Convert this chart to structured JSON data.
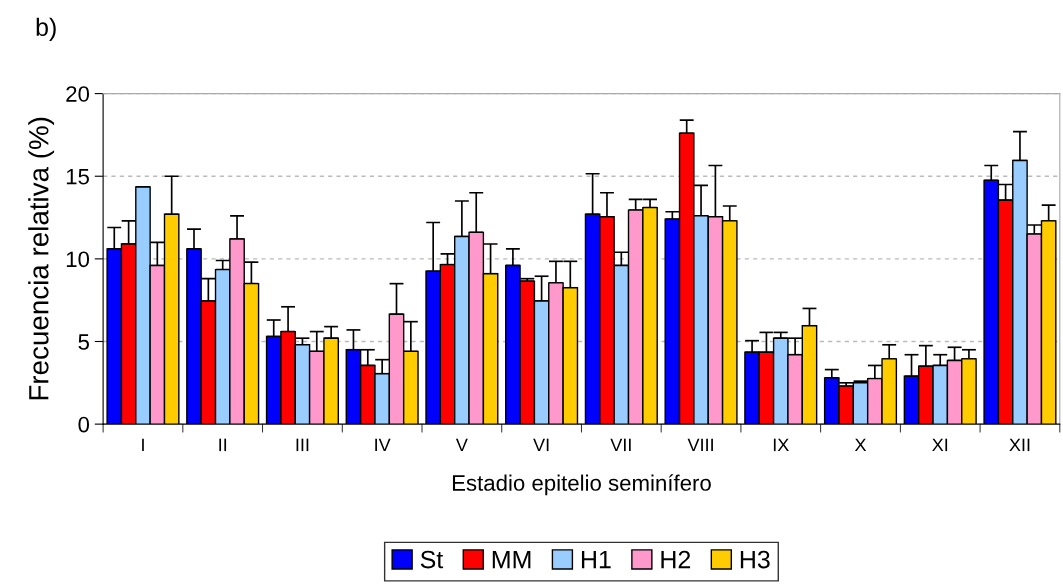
{
  "chart_data": {
    "type": "bar",
    "xlabel": "Estadio epitelio seminífero",
    "ylabel": "Frecuencia relativa (%)",
    "annotations": [
      "b)"
    ],
    "categories": [
      "I",
      "II",
      "III",
      "IV",
      "V",
      "VI",
      "VII",
      "VIII",
      "IX",
      "X",
      "XI",
      "XII"
    ],
    "ylim": [
      0,
      20
    ],
    "yticks": [
      0,
      5,
      10,
      15,
      20
    ],
    "grid": "y",
    "legend": "bottom",
    "series": [
      {
        "name": "St",
        "color": "#0000ff",
        "values": [
          10.6,
          10.6,
          5.3,
          4.5,
          9.25,
          9.6,
          12.7,
          12.4,
          4.35,
          2.8,
          2.9,
          14.75
        ],
        "errors": [
          [
            10.6,
            11.9
          ],
          [
            10.6,
            11.8
          ],
          [
            5.3,
            6.3
          ],
          [
            4.5,
            5.7
          ],
          [
            9.25,
            12.2
          ],
          [
            9.6,
            10.6
          ],
          [
            12.7,
            15.15
          ],
          [
            12.4,
            12.85
          ],
          [
            4.35,
            5.05
          ],
          [
            2.8,
            3.3
          ],
          [
            2.9,
            4.2
          ],
          [
            14.75,
            15.65
          ]
        ]
      },
      {
        "name": "MM",
        "color": "#ff0000",
        "values": [
          10.9,
          7.45,
          5.6,
          3.55,
          9.65,
          8.65,
          12.55,
          17.6,
          4.35,
          2.3,
          3.5,
          13.55
        ],
        "errors": [
          [
            10.9,
            12.3
          ],
          [
            7.45,
            8.8
          ],
          [
            5.6,
            7.1
          ],
          [
            3.55,
            4.5
          ],
          [
            9.65,
            10.3
          ],
          [
            8.65,
            8.8
          ],
          [
            12.55,
            14.0
          ],
          [
            17.6,
            18.4
          ],
          [
            4.35,
            5.55
          ],
          [
            2.3,
            2.5
          ],
          [
            3.5,
            4.75
          ],
          [
            13.55,
            14.5
          ]
        ]
      },
      {
        "name": "H1",
        "color": "#99ccff",
        "values": [
          14.35,
          9.35,
          4.8,
          3.05,
          11.35,
          7.45,
          9.6,
          12.6,
          5.2,
          2.5,
          3.55,
          15.95
        ],
        "errors": [
          [
            14.35,
            14.35
          ],
          [
            9.35,
            9.9
          ],
          [
            4.8,
            5.2
          ],
          [
            3.05,
            3.9
          ],
          [
            11.35,
            13.5
          ],
          [
            7.45,
            8.95
          ],
          [
            9.6,
            10.4
          ],
          [
            12.6,
            14.45
          ],
          [
            5.2,
            5.55
          ],
          [
            2.5,
            2.6
          ],
          [
            3.55,
            4.2
          ],
          [
            15.95,
            17.7
          ]
        ]
      },
      {
        "name": "H2",
        "color": "#ff99cc",
        "values": [
          9.6,
          11.2,
          4.4,
          6.65,
          11.6,
          8.55,
          12.95,
          12.55,
          4.2,
          2.75,
          3.85,
          11.5
        ],
        "errors": [
          [
            9.6,
            11.0
          ],
          [
            11.2,
            12.6
          ],
          [
            4.4,
            5.6
          ],
          [
            6.65,
            8.5
          ],
          [
            11.6,
            14.0
          ],
          [
            8.55,
            9.85
          ],
          [
            12.95,
            13.6
          ],
          [
            12.55,
            15.65
          ],
          [
            4.2,
            5.2
          ],
          [
            2.75,
            3.55
          ],
          [
            3.85,
            4.65
          ],
          [
            11.5,
            12.05
          ]
        ]
      },
      {
        "name": "H3",
        "color": "#ffcc00",
        "values": [
          12.7,
          8.5,
          5.2,
          4.4,
          9.1,
          8.25,
          13.1,
          12.3,
          5.95,
          3.95,
          3.95,
          12.3
        ],
        "errors": [
          [
            12.7,
            15.0
          ],
          [
            8.5,
            9.8
          ],
          [
            5.2,
            5.9
          ],
          [
            4.4,
            6.2
          ],
          [
            9.1,
            10.9
          ],
          [
            8.25,
            9.85
          ],
          [
            13.1,
            13.6
          ],
          [
            12.3,
            13.2
          ],
          [
            5.95,
            7.0
          ],
          [
            3.95,
            4.8
          ],
          [
            3.95,
            4.5
          ],
          [
            12.3,
            13.25
          ]
        ]
      }
    ]
  }
}
